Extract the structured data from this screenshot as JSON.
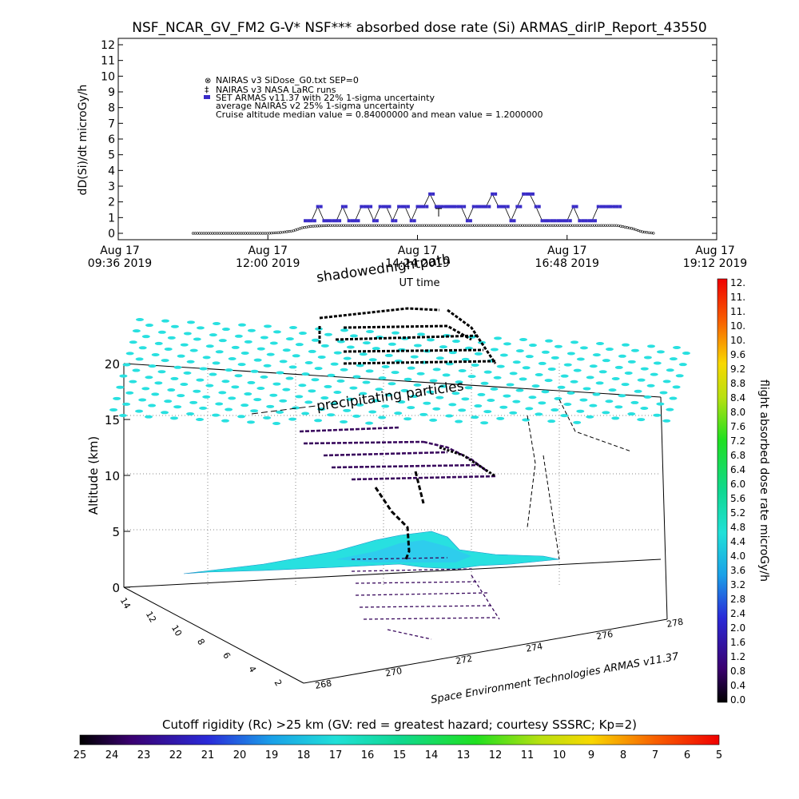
{
  "chart_data": [
    {
      "type": "scatter",
      "title": "NSF_NCAR_GV_FM2 G-V* NSF*** absorbed dose rate (Si) ARMAS_dirIP_Report_43550",
      "xlabel": "UT time",
      "ylabel": "dD(Si)/dt microGy/h",
      "ylim": [
        0,
        12
      ],
      "xlim": [
        9.6,
        19.2
      ],
      "x_ticks": [
        {
          "line1": "Aug 17",
          "line2": "09:36 2019"
        },
        {
          "line1": "Aug 17",
          "line2": "12:00 2019"
        },
        {
          "line1": "Aug 17",
          "line2": "14:24 2019"
        },
        {
          "line1": "Aug 17",
          "line2": "16:48 2019"
        },
        {
          "line1": "Aug 17",
          "line2": "19:12 2019"
        }
      ],
      "y_ticks": [
        "0",
        "1",
        "2",
        "3",
        "4",
        "5",
        "6",
        "7",
        "8",
        "9",
        "10",
        "11",
        "12"
      ],
      "legend": [
        "NAIRAS v3 SiDose_G0.txt SEP=0",
        "NAIRAS v3 NASA LaRC runs",
        "SET ARMAS v11.37 with 22% 1-sigma uncertainty",
        "average NAIRAS v2 25% 1-sigma uncertainty",
        "Cruise altitude median value = 0.84000000 and mean value = 1.2000000"
      ],
      "legend_placement": "top-left",
      "series": [
        {
          "name": "NAIRAS v3 SiDose_G0.txt SEP=0",
          "x": [
            10.8,
            11.4,
            12.0,
            12.2,
            12.4,
            12.55,
            12.7,
            13.0,
            14.0,
            15.0,
            16.0,
            17.0,
            17.6,
            17.85,
            18.0,
            18.2
          ],
          "values": [
            0.0,
            0.0,
            0.0,
            0.05,
            0.15,
            0.35,
            0.45,
            0.5,
            0.5,
            0.5,
            0.5,
            0.5,
            0.5,
            0.3,
            0.1,
            0.0
          ]
        },
        {
          "name": "SET ARMAS v11.37 with 22% 1-sigma uncertainty",
          "x": [
            12.6,
            12.7,
            12.8,
            12.9,
            13.0,
            13.1,
            13.2,
            13.3,
            13.4,
            13.5,
            13.6,
            13.7,
            13.8,
            13.9,
            14.0,
            14.1,
            14.2,
            14.3,
            14.4,
            14.5,
            14.6,
            14.7,
            14.8,
            14.9,
            15.0,
            15.1,
            15.2,
            15.3,
            15.4,
            15.5,
            15.6,
            15.7,
            15.8,
            15.9,
            16.0,
            16.1,
            16.2,
            16.3,
            16.4,
            16.5,
            16.6,
            16.7,
            16.8,
            16.9,
            17.0,
            17.1,
            17.2,
            17.3,
            17.4,
            17.5,
            17.6
          ],
          "values": [
            0.8,
            0.8,
            1.7,
            0.8,
            0.8,
            0.8,
            1.7,
            0.8,
            0.8,
            1.7,
            1.7,
            0.8,
            1.7,
            1.7,
            0.8,
            1.7,
            1.7,
            0.8,
            1.7,
            1.7,
            2.5,
            1.7,
            1.7,
            1.7,
            1.7,
            1.7,
            0.8,
            1.7,
            1.7,
            1.7,
            2.5,
            1.7,
            1.7,
            0.8,
            1.7,
            2.5,
            2.5,
            1.7,
            0.8,
            0.8,
            0.8,
            0.8,
            0.8,
            1.7,
            0.8,
            0.8,
            0.8,
            1.7,
            1.7,
            1.7,
            1.7
          ]
        }
      ],
      "grid": false
    },
    {
      "type": "scatter",
      "annotations": [
        "shadowed",
        "nightpath",
        "precipitating particles"
      ],
      "z_axis": {
        "label": "Altitude (km)",
        "ticks": [
          "0",
          "5",
          "10",
          "15",
          "20"
        ],
        "range": [
          0,
          20
        ]
      },
      "y_axis_ticks": [
        "2",
        "4",
        "6",
        "8",
        "10",
        "12",
        "14"
      ],
      "x_axis_ticks": [
        "268",
        "270",
        "272",
        "274",
        "276",
        "278"
      ],
      "credit": "Space Environment Technologies ARMAS v11.37",
      "grid": true
    }
  ],
  "colorbar_right": {
    "label": "flight absorbed dose rate microGy/h",
    "ticks": [
      "12.",
      "11.",
      "11.",
      "10.",
      "10.",
      "9.6",
      "9.2",
      "8.8",
      "8.4",
      "8.0",
      "7.6",
      "7.2",
      "6.8",
      "6.4",
      "6.0",
      "5.6",
      "5.2",
      "4.8",
      "4.4",
      "4.0",
      "3.6",
      "3.2",
      "2.8",
      "2.4",
      "2.0",
      "1.6",
      "1.2",
      "0.8",
      "0.4",
      "0.0"
    ]
  },
  "colorbar_bottom": {
    "label": "Cutoff rigidity (Rc) >25 km (GV: red = greatest hazard; courtesy SSSRC; Kp=2)",
    "ticks": [
      "25",
      "24",
      "23",
      "22",
      "21",
      "20",
      "19",
      "18",
      "17",
      "16",
      "15",
      "14",
      "13",
      "12",
      "11",
      "10",
      "9",
      "8",
      "7",
      "6",
      "5"
    ]
  },
  "colors": {
    "armas": "#3a2cc8",
    "armas_line": "#3a0a5e",
    "nairas": "#000000",
    "cyan": "#28e0e0"
  }
}
